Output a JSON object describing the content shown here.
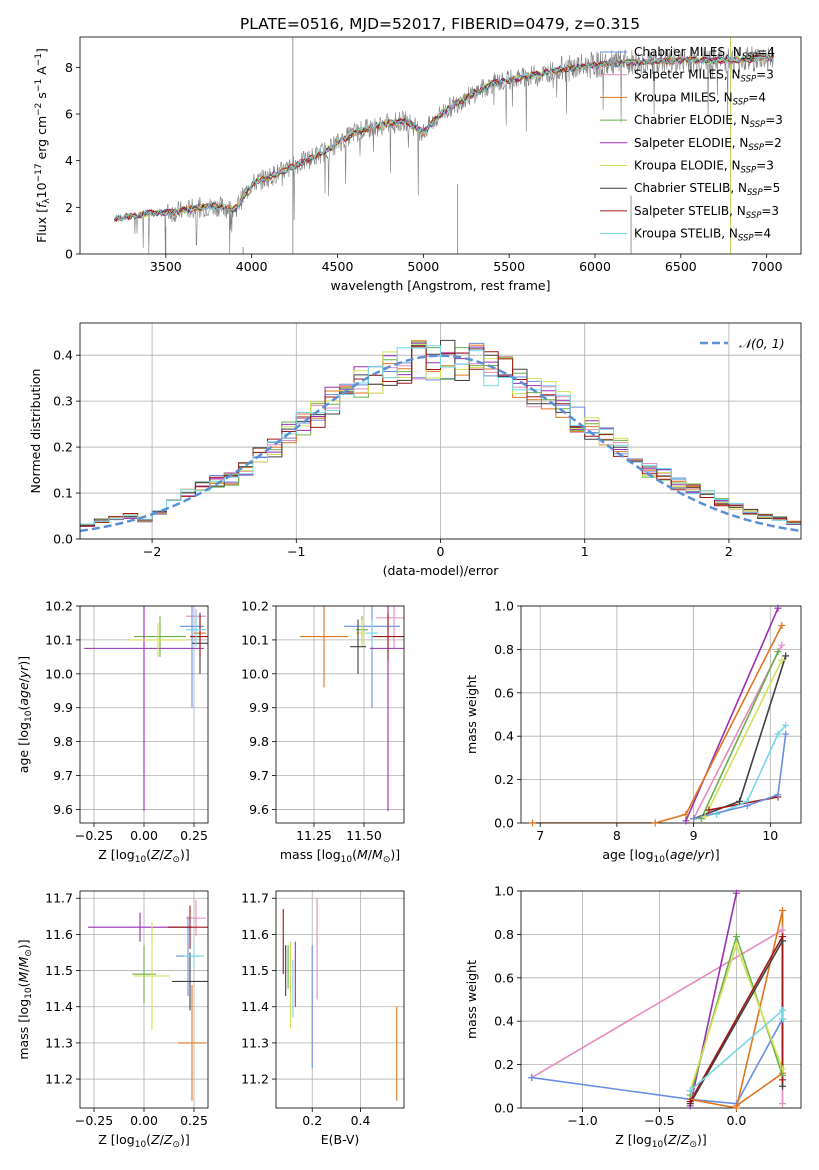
{
  "title": "PLATE=0516, MJD=52017, FIBERID=0479, z=0.315",
  "colors": {
    "chabrier_miles": "#6a8fe0",
    "salpeter_miles": "#e58bc0",
    "kroupa_miles": "#e0761e",
    "chabrier_elodie": "#6ab04c",
    "salpeter_elodie": "#9a2fb5",
    "kroupa_elodie": "#d4e157",
    "chabrier_stelib": "#404040",
    "salpeter_stelib": "#a01818",
    "kroupa_stelib": "#76d7e8",
    "data": "#808080",
    "normal": "#5b8fd6",
    "grid": "#b0b0b0"
  },
  "chart_data": [
    {
      "id": "spectrum",
      "type": "line",
      "xlabel": "wavelength [Angstrom, rest frame]",
      "ylabel": "Flux [f_λ 10^-17 erg cm^-2 s^-1 A^-1]",
      "xlim": [
        3000,
        7200
      ],
      "ylim": [
        0,
        9.3
      ],
      "xticks": [
        "3500",
        "4000",
        "4500",
        "5000",
        "5500",
        "6000",
        "6500",
        "7000"
      ],
      "yticks": [
        "0",
        "2",
        "4",
        "6",
        "8"
      ],
      "continuum": [
        [
          3200,
          1.5
        ],
        [
          3400,
          1.75
        ],
        [
          3550,
          1.8
        ],
        [
          3700,
          2.0
        ],
        [
          3800,
          2.05
        ],
        [
          3900,
          1.9
        ],
        [
          4000,
          3.0
        ],
        [
          4100,
          3.3
        ],
        [
          4200,
          3.6
        ],
        [
          4400,
          4.3
        ],
        [
          4600,
          5.2
        ],
        [
          4800,
          5.6
        ],
        [
          4900,
          5.7
        ],
        [
          5000,
          5.2
        ],
        [
          5100,
          6.0
        ],
        [
          5200,
          6.5
        ],
        [
          5400,
          7.3
        ],
        [
          5600,
          7.6
        ],
        [
          5800,
          7.9
        ],
        [
          6000,
          8.1
        ],
        [
          6200,
          8.2
        ],
        [
          6500,
          8.3
        ],
        [
          6800,
          8.3
        ],
        [
          7000,
          8.4
        ]
      ],
      "legend": [
        {
          "label": "Chabrier MILES, N",
          "sub": "SSP",
          "val": "=4",
          "color": "chabrier_miles"
        },
        {
          "label": "Salpeter MILES, N",
          "sub": "SSP",
          "val": "=3",
          "color": "salpeter_miles"
        },
        {
          "label": "Kroupa MILES, N",
          "sub": "SSP",
          "val": "=4",
          "color": "kroupa_miles"
        },
        {
          "label": "Chabrier ELODIE, N",
          "sub": "SSP",
          "val": "=3",
          "color": "chabrier_elodie"
        },
        {
          "label": "Salpeter ELODIE, N",
          "sub": "SSP",
          "val": "=2",
          "color": "salpeter_elodie"
        },
        {
          "label": "Kroupa ELODIE, N",
          "sub": "SSP",
          "val": "=3",
          "color": "kroupa_elodie"
        },
        {
          "label": "Chabrier STELIB, N",
          "sub": "SSP",
          "val": "=5",
          "color": "chabrier_stelib"
        },
        {
          "label": "Salpeter STELIB, N",
          "sub": "SSP",
          "val": "=3",
          "color": "salpeter_stelib"
        },
        {
          "label": "Kroupa STELIB, N",
          "sub": "SSP",
          "val": "=4",
          "color": "kroupa_stelib"
        }
      ]
    },
    {
      "id": "residuals",
      "type": "histogram",
      "xlabel": "(data-model)/error",
      "ylabel": "Normed distribution",
      "xlim": [
        -2.5,
        2.5
      ],
      "ylim": [
        0,
        0.47
      ],
      "xticks": [
        "−2",
        "−1",
        "0",
        "1",
        "2"
      ],
      "yticks": [
        "0.0",
        "0.1",
        "0.2",
        "0.3",
        "0.4"
      ],
      "bin_width": 0.1,
      "approx_bin_values": [
        0.03,
        0.04,
        0.045,
        0.05,
        0.04,
        0.06,
        0.08,
        0.1,
        0.115,
        0.125,
        0.13,
        0.15,
        0.18,
        0.2,
        0.23,
        0.25,
        0.27,
        0.3,
        0.32,
        0.34,
        0.35,
        0.37,
        0.38,
        0.39,
        0.385,
        0.39,
        0.38,
        0.385,
        0.37,
        0.36,
        0.34,
        0.32,
        0.31,
        0.29,
        0.26,
        0.24,
        0.22,
        0.2,
        0.18,
        0.15,
        0.14,
        0.12,
        0.11,
        0.1,
        0.08,
        0.07,
        0.06,
        0.05,
        0.045,
        0.035
      ],
      "normal_label": "𝒩(0, 1)"
    },
    {
      "id": "age_vs_Z",
      "type": "errorbar",
      "xlabel": "Z [log10(Z/Z☉)]",
      "ylabel": "age [log10(age/yr)]",
      "xlim": [
        -0.32,
        0.32
      ],
      "ylim": [
        9.56,
        10.2
      ],
      "xticks": [
        "−0.25",
        "0.00",
        "0.25"
      ],
      "yticks": [
        "9.6",
        "9.7",
        "9.8",
        "9.9",
        "10.0",
        "10.1",
        "10.2"
      ],
      "points": [
        {
          "x": 0.28,
          "y": 10.12,
          "xerr": 0.03,
          "yerr": 0.05,
          "color": "kroupa_miles"
        },
        {
          "x": 0.26,
          "y": 10.17,
          "xerr": 0.05,
          "yerr": 0.02,
          "color": "salpeter_miles"
        },
        {
          "x": 0.24,
          "y": 10.14,
          "xerr": 0.06,
          "yerr": 0.24,
          "color": "chabrier_miles"
        },
        {
          "x": 0.08,
          "y": 10.11,
          "xerr": 0.13,
          "yerr": 0.06,
          "color": "chabrier_elodie"
        },
        {
          "x": 0.0,
          "y": 10.075,
          "xerr": 0.3,
          "yerr": 0.48,
          "color": "salpeter_elodie"
        },
        {
          "x": 0.07,
          "y": 10.1,
          "xerr": 0.14,
          "yerr": 0.05,
          "color": "kroupa_elodie"
        },
        {
          "x": 0.28,
          "y": 10.09,
          "xerr": 0.04,
          "yerr": 0.09,
          "color": "chabrier_stelib"
        },
        {
          "x": 0.28,
          "y": 10.11,
          "xerr": 0.05,
          "yerr": 0.06,
          "color": "salpeter_stelib"
        },
        {
          "x": 0.26,
          "y": 10.13,
          "xerr": 0.05,
          "yerr": 0.05,
          "color": "kroupa_stelib"
        }
      ]
    },
    {
      "id": "age_vs_mass",
      "type": "errorbar",
      "xlabel": "mass [log10(M/M☉)]",
      "ylabel": "",
      "xlim": [
        11.06,
        11.7
      ],
      "ylim": [
        9.56,
        10.2
      ],
      "xticks": [
        "11.25",
        "11.50"
      ],
      "yticks": [
        "9.6",
        "9.7",
        "9.8",
        "9.9",
        "10.0",
        "10.1",
        "10.2"
      ],
      "points": [
        {
          "x": 11.3,
          "y": 10.11,
          "xerr": 0.12,
          "yerr": 0.15,
          "color": "kroupa_miles"
        },
        {
          "x": 11.65,
          "y": 10.165,
          "xerr": 0.09,
          "yerr": 0.09,
          "color": "salpeter_miles"
        },
        {
          "x": 11.54,
          "y": 10.14,
          "xerr": 0.14,
          "yerr": 0.24,
          "color": "chabrier_miles"
        },
        {
          "x": 11.49,
          "y": 10.13,
          "xerr": 0.03,
          "yerr": 0.04,
          "color": "chabrier_elodie"
        },
        {
          "x": 11.62,
          "y": 10.075,
          "xerr": 0.09,
          "yerr": 0.48,
          "color": "salpeter_elodie"
        },
        {
          "x": 11.49,
          "y": 10.12,
          "xerr": 0.03,
          "yerr": 0.04,
          "color": "kroupa_elodie"
        },
        {
          "x": 11.47,
          "y": 10.08,
          "xerr": 0.04,
          "yerr": 0.08,
          "color": "chabrier_stelib"
        },
        {
          "x": 11.62,
          "y": 10.11,
          "xerr": 0.08,
          "yerr": 0.07,
          "color": "salpeter_stelib"
        },
        {
          "x": 11.54,
          "y": 10.12,
          "xerr": 0.03,
          "yerr": 0.04,
          "color": "kroupa_stelib"
        }
      ]
    },
    {
      "id": "weight_vs_age",
      "type": "line",
      "xlabel": "age [log10(age/yr)]",
      "ylabel": "mass weight",
      "xlim": [
        6.75,
        10.4
      ],
      "ylim": [
        0,
        1
      ],
      "xticks": [
        "7",
        "8",
        "9",
        "10"
      ],
      "yticks": [
        "0.0",
        "0.2",
        "0.4",
        "0.6",
        "0.8",
        "1.0"
      ],
      "series": [
        {
          "color": "salpeter_elodie",
          "x": [
            8.9,
            10.1
          ],
          "y": [
            0.01,
            0.99
          ]
        },
        {
          "color": "kroupa_miles",
          "x": [
            6.9,
            8.5,
            8.9,
            10.15
          ],
          "y": [
            0.0,
            0.0,
            0.04,
            0.91
          ]
        },
        {
          "color": "salpeter_miles",
          "x": [
            9.0,
            10.15
          ],
          "y": [
            0.02,
            0.82
          ]
        },
        {
          "color": "chabrier_elodie",
          "x": [
            9.1,
            10.1
          ],
          "y": [
            0.02,
            0.79
          ]
        },
        {
          "color": "kroupa_elodie",
          "x": [
            9.15,
            10.15
          ],
          "y": [
            0.03,
            0.75
          ]
        },
        {
          "color": "chabrier_stelib",
          "x": [
            9.0,
            9.6,
            10.2
          ],
          "y": [
            0.02,
            0.1,
            0.77
          ]
        },
        {
          "color": "salpeter_stelib",
          "x": [
            9.2,
            10.1
          ],
          "y": [
            0.06,
            0.12
          ]
        },
        {
          "color": "kroupa_stelib",
          "x": [
            9.3,
            9.7,
            10.1,
            10.2
          ],
          "y": [
            0.04,
            0.1,
            0.41,
            0.45
          ]
        },
        {
          "color": "chabrier_miles",
          "x": [
            9.0,
            9.7,
            10.1,
            10.2
          ],
          "y": [
            0.02,
            0.08,
            0.13,
            0.41
          ]
        }
      ]
    },
    {
      "id": "mass_vs_Z",
      "type": "errorbar",
      "xlabel": "Z [log10(Z/Z☉)]",
      "ylabel": "mass [log10(M/M☉)]",
      "xlim": [
        -0.32,
        0.32
      ],
      "ylim": [
        11.12,
        11.72
      ],
      "xticks": [
        "−0.25",
        "0.00",
        "0.25"
      ],
      "yticks": [
        "11.2",
        "11.3",
        "11.4",
        "11.5",
        "11.6",
        "11.7"
      ],
      "points": [
        {
          "x": 0.24,
          "y": 11.3,
          "xerr": 0.07,
          "yerr": 0.16,
          "color": "kroupa_miles"
        },
        {
          "x": 0.26,
          "y": 11.645,
          "xerr": 0.05,
          "yerr": 0.05,
          "color": "salpeter_miles"
        },
        {
          "x": 0.22,
          "y": 11.54,
          "xerr": 0.06,
          "yerr": 0.11,
          "color": "chabrier_miles"
        },
        {
          "x": 0.0,
          "y": 11.49,
          "xerr": 0.06,
          "yerr": 0.08,
          "color": "chabrier_elodie"
        },
        {
          "x": -0.02,
          "y": 11.62,
          "xerr": 0.26,
          "yerr": 0.04,
          "color": "salpeter_elodie"
        },
        {
          "x": 0.04,
          "y": 11.485,
          "xerr": 0.09,
          "yerr": 0.15,
          "color": "kroupa_elodie"
        },
        {
          "x": 0.23,
          "y": 11.47,
          "xerr": 0.09,
          "yerr": 0.08,
          "color": "chabrier_stelib"
        },
        {
          "x": 0.23,
          "y": 11.62,
          "xerr": 0.11,
          "yerr": 0.06,
          "color": "salpeter_stelib"
        },
        {
          "x": 0.25,
          "y": 11.54,
          "xerr": 0.05,
          "yerr": 0.03,
          "color": "kroupa_stelib"
        }
      ]
    },
    {
      "id": "mass_vs_EBV",
      "type": "errorbar",
      "xlabel": "E(B-V)",
      "ylabel": "",
      "xlim": [
        0.05,
        0.58
      ],
      "ylim": [
        11.12,
        11.72
      ],
      "xticks": [
        "0.2",
        "0.4"
      ],
      "yticks": [
        "11.2",
        "11.3",
        "11.4",
        "11.5",
        "11.6",
        "11.7"
      ],
      "points": [
        {
          "x": 0.55,
          "y": 11.27,
          "xerr": 0.0,
          "yerr": 0.13,
          "color": "kroupa_miles"
        },
        {
          "x": 0.22,
          "y": 11.56,
          "xerr": 0.0,
          "yerr": 0.14,
          "color": "salpeter_miles"
        },
        {
          "x": 0.2,
          "y": 11.4,
          "xerr": 0.0,
          "yerr": 0.17,
          "color": "chabrier_miles"
        },
        {
          "x": 0.1,
          "y": 11.51,
          "xerr": 0.0,
          "yerr": 0.06,
          "color": "chabrier_elodie"
        },
        {
          "x": 0.13,
          "y": 11.49,
          "xerr": 0.0,
          "yerr": 0.09,
          "color": "salpeter_elodie"
        },
        {
          "x": 0.11,
          "y": 11.46,
          "xerr": 0.0,
          "yerr": 0.12,
          "color": "kroupa_elodie"
        },
        {
          "x": 0.08,
          "y": 11.58,
          "xerr": 0.0,
          "yerr": 0.09,
          "color": "salpeter_stelib"
        },
        {
          "x": 0.09,
          "y": 11.5,
          "xerr": 0.0,
          "yerr": 0.07,
          "color": "chabrier_stelib"
        },
        {
          "x": 0.12,
          "y": 11.45,
          "xerr": 0.0,
          "yerr": 0.08,
          "color": "kroupa_stelib"
        }
      ]
    },
    {
      "id": "weight_vs_Z",
      "type": "line",
      "xlabel": "Z [log10(Z/Z☉)]",
      "ylabel": "mass weight",
      "xlim": [
        -1.4,
        0.42
      ],
      "ylim": [
        0,
        1
      ],
      "xticks": [
        "−1.0",
        "−0.5",
        "0.0"
      ],
      "yticks": [
        "0.0",
        "0.2",
        "0.4",
        "0.6",
        "0.8",
        "1.0"
      ],
      "series": [
        {
          "color": "salpeter_miles",
          "x": [
            -1.33,
            0.3,
            0.3
          ],
          "y": [
            0.14,
            0.82,
            0.02
          ]
        },
        {
          "color": "chabrier_miles",
          "x": [
            -1.33,
            -0.3,
            0.0,
            0.3,
            0.3
          ],
          "y": [
            0.14,
            0.04,
            0.02,
            0.41,
            0.45
          ]
        },
        {
          "color": "salpeter_elodie",
          "x": [
            -0.3,
            0.0
          ],
          "y": [
            0.01,
            0.99
          ]
        },
        {
          "color": "kroupa_miles",
          "x": [
            -0.3,
            0.0,
            0.3,
            0.3,
            0.0
          ],
          "y": [
            0.04,
            0.0,
            0.91,
            0.16,
            0.01
          ]
        },
        {
          "color": "chabrier_elodie",
          "x": [
            -0.3,
            0.0,
            0.3
          ],
          "y": [
            0.06,
            0.79,
            0.15
          ]
        },
        {
          "color": "kroupa_elodie",
          "x": [
            -0.3,
            0.0,
            0.3
          ],
          "y": [
            0.08,
            0.75,
            0.18
          ]
        },
        {
          "color": "chabrier_stelib",
          "x": [
            -0.3,
            0.3,
            0.3
          ],
          "y": [
            0.02,
            0.77,
            0.1
          ]
        },
        {
          "color": "salpeter_stelib",
          "x": [
            -0.3,
            0.3,
            0.3
          ],
          "y": [
            0.03,
            0.79,
            0.13
          ]
        },
        {
          "color": "kroupa_stelib",
          "x": [
            -0.3,
            0.3,
            0.3
          ],
          "y": [
            0.08,
            0.45,
            0.41
          ]
        }
      ]
    }
  ]
}
